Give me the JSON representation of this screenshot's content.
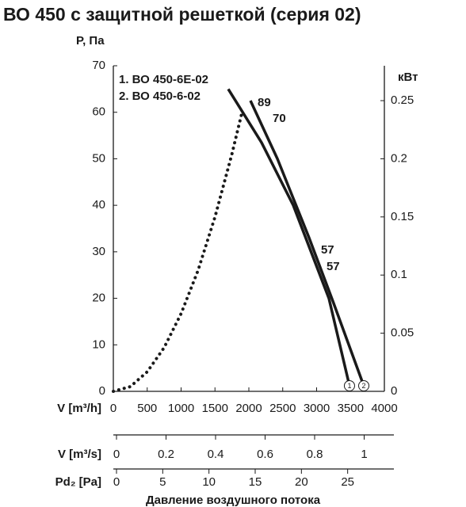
{
  "chart_data": {
    "type": "line",
    "title": "ВО 450 с защитной решеткой (серия 02)",
    "xlabel": "V [m³/h]",
    "ylabel": "P, Па",
    "y2label": "кВт",
    "xlim": [
      0,
      4000
    ],
    "xticks": [
      0,
      500,
      1000,
      1500,
      2000,
      2500,
      3000,
      3500,
      4000
    ],
    "ylim": [
      0,
      70
    ],
    "yticks": [
      0,
      10,
      20,
      30,
      40,
      50,
      60,
      70
    ],
    "y2lim": [
      0,
      0.28
    ],
    "y2ticks": [
      0,
      0.05,
      0.1,
      0.15,
      0.2,
      0.25
    ],
    "series": [
      {
        "name": "1. ВО 450-6Е-02",
        "color": "#1a1a1a",
        "end_label": "1",
        "x": [
          1696,
          2187,
          2655,
          3181,
          3485
        ],
        "values": [
          65,
          53.5,
          40,
          20,
          1.2
        ]
      },
      {
        "name": "2. ВО 450-6-02",
        "color": "#1a1a1a",
        "end_label": "2",
        "x": [
          2023,
          2421,
          2889,
          3240,
          3696
        ],
        "values": [
          62.5,
          50,
          33,
          19.4,
          1.2
        ]
      },
      {
        "color": "#1a1a1a",
        "style": "dotted",
        "x": [
          0,
          250,
          500,
          750,
          1000,
          1250,
          1500,
          1750,
          1900
        ],
        "values": [
          0,
          1,
          4.2,
          9.4,
          16.7,
          26,
          37.5,
          51,
          60
        ]
      }
    ],
    "annotations": [
      {
        "text": "89",
        "x": 2129,
        "y": 62
      },
      {
        "text": "70",
        "x": 2351,
        "y": 58.6
      },
      {
        "text": "57",
        "x": 3064,
        "y": 30.3
      },
      {
        "text": "57",
        "x": 3146,
        "y": 26.7
      }
    ],
    "extra_axes": [
      {
        "label": "V [m³/s]",
        "xlim": [
          0,
          1.12
        ],
        "xticks": [
          0,
          0.2,
          0.4,
          0.6,
          0.8,
          1
        ]
      },
      {
        "label": "Pd₂ [Pa]",
        "xlim": [
          0,
          30
        ],
        "xticks": [
          0,
          5,
          10,
          15,
          20,
          25
        ]
      }
    ],
    "caption": "Давление воздушного потока"
  }
}
